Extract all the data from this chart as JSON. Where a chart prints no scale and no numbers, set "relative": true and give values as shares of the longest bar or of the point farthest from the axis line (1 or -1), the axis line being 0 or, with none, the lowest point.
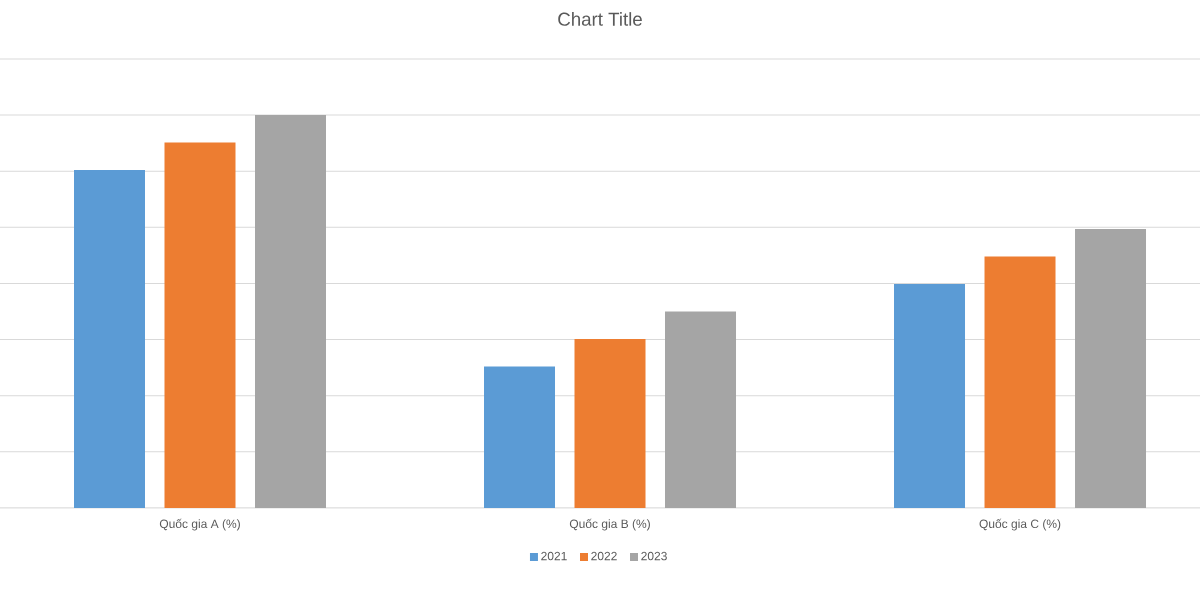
{
  "chart_data": {
    "type": "bar",
    "title": "Chart Title",
    "relative": true,
    "grid": "y",
    "legend": "bottom",
    "categories": [
      "Quốc gia A (%)",
      "Quốc gia B (%)",
      "Quốc gia C (%)"
    ],
    "series": [
      {
        "name": "2021",
        "color": "#5b9bd5",
        "values": [
          0.86,
          0.36,
          0.57
        ]
      },
      {
        "name": "2022",
        "color": "#ed7d31",
        "values": [
          0.93,
          0.43,
          0.64
        ]
      },
      {
        "name": "2023",
        "color": "#a5a5a5",
        "values": [
          1,
          0.5,
          0.71
        ]
      }
    ]
  }
}
